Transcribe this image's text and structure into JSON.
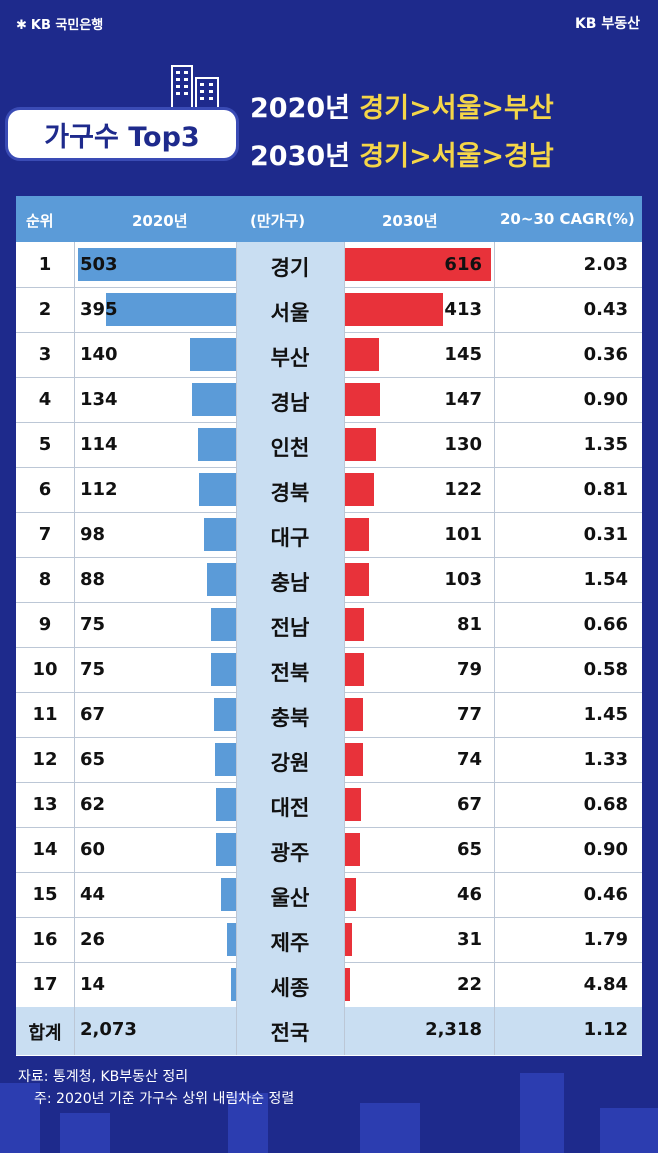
{
  "brand": {
    "left": "KB 국민은행",
    "right": "KB 부동산"
  },
  "badge": "가구수 Top3",
  "headline": [
    {
      "year": "2020년",
      "rank": "경기>서울>부산"
    },
    {
      "year": "2030년",
      "rank": "경기>서울>경남"
    }
  ],
  "table": {
    "headers": {
      "rank": "순위",
      "y2020": "2020년",
      "unit": "(만가구)",
      "y2030": "2030년",
      "cagr": "20~30 CAGR(%)"
    },
    "total": {
      "label": "합계",
      "y2020": "2,073",
      "region": "전국",
      "y2030": "2,318",
      "cagr": "1.12"
    }
  },
  "footer": {
    "source": "자료: 통계청, KB부동산 정리",
    "note": "주: 2020년 기준 가구수 상위 내림차순 정렬"
  },
  "colors": {
    "bar2020": "#5b9bd8",
    "bar2030": "#e8323a",
    "header": "#5b9bd8",
    "background": "#1e2a8c"
  },
  "chart_data": {
    "type": "table",
    "unit": "(만가구)",
    "columns": [
      "순위",
      "2020년",
      "(만가구)",
      "2030년",
      "20~30 CAGR(%)"
    ],
    "rows": [
      {
        "rank": "1",
        "region": "경기",
        "y2020": 503,
        "y2030": 616,
        "cagr": "2.03"
      },
      {
        "rank": "2",
        "region": "서울",
        "y2020": 395,
        "y2030": 413,
        "cagr": "0.43"
      },
      {
        "rank": "3",
        "region": "부산",
        "y2020": 140,
        "y2030": 145,
        "cagr": "0.36"
      },
      {
        "rank": "4",
        "region": "경남",
        "y2020": 134,
        "y2030": 147,
        "cagr": "0.90"
      },
      {
        "rank": "5",
        "region": "인천",
        "y2020": 114,
        "y2030": 130,
        "cagr": "1.35"
      },
      {
        "rank": "6",
        "region": "경북",
        "y2020": 112,
        "y2030": 122,
        "cagr": "0.81"
      },
      {
        "rank": "7",
        "region": "대구",
        "y2020": 98,
        "y2030": 101,
        "cagr": "0.31"
      },
      {
        "rank": "8",
        "region": "충남",
        "y2020": 88,
        "y2030": 103,
        "cagr": "1.54"
      },
      {
        "rank": "9",
        "region": "전남",
        "y2020": 75,
        "y2030": 81,
        "cagr": "0.66"
      },
      {
        "rank": "10",
        "region": "전북",
        "y2020": 75,
        "y2030": 79,
        "cagr": "0.58"
      },
      {
        "rank": "11",
        "region": "충북",
        "y2020": 67,
        "y2030": 77,
        "cagr": "1.45"
      },
      {
        "rank": "12",
        "region": "강원",
        "y2020": 65,
        "y2030": 74,
        "cagr": "1.33"
      },
      {
        "rank": "13",
        "region": "대전",
        "y2020": 62,
        "y2030": 67,
        "cagr": "0.68"
      },
      {
        "rank": "14",
        "region": "광주",
        "y2020": 60,
        "y2030": 65,
        "cagr": "0.90"
      },
      {
        "rank": "15",
        "region": "울산",
        "y2020": 44,
        "y2030": 46,
        "cagr": "0.46"
      },
      {
        "rank": "16",
        "region": "제주",
        "y2020": 26,
        "y2030": 31,
        "cagr": "1.79"
      },
      {
        "rank": "17",
        "region": "세종",
        "y2020": 14,
        "y2030": 22,
        "cagr": "4.84"
      }
    ]
  }
}
